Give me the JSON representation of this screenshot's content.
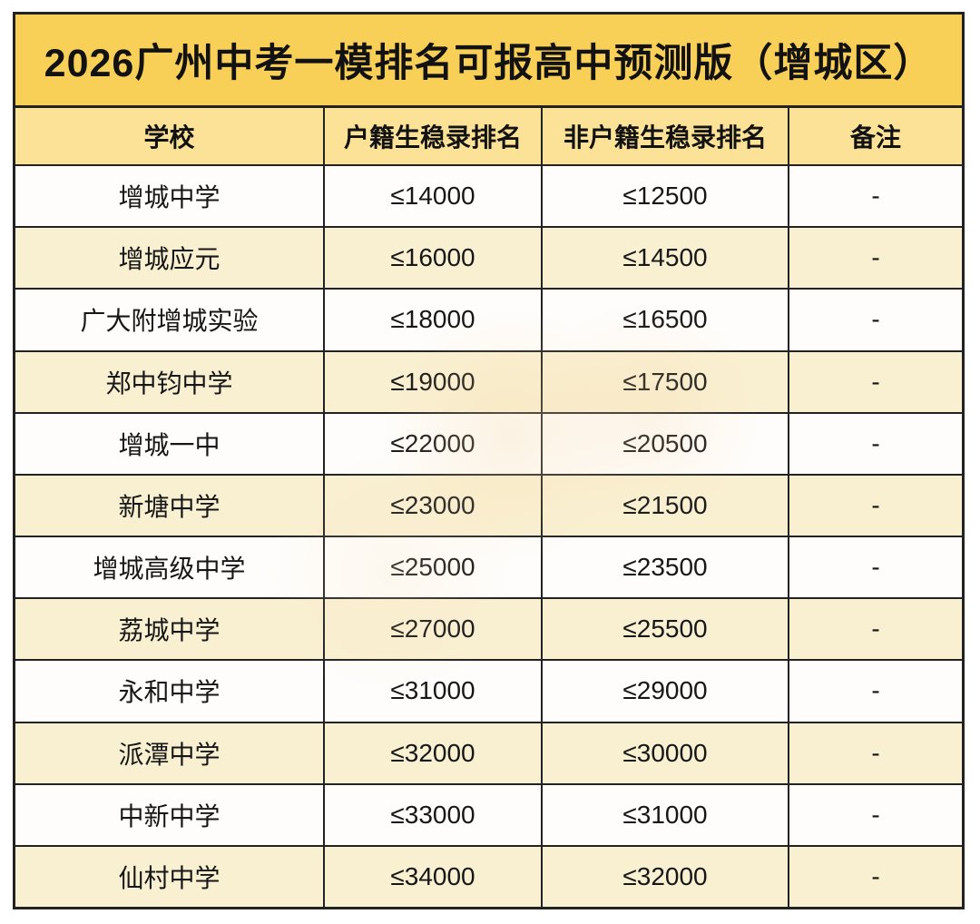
{
  "title": "2026广州中考一模排名可报高中预测版（增城区）",
  "columns": [
    "学校",
    "户籍生稳录排名",
    "非户籍生稳录排名",
    "备注"
  ],
  "rows": [
    {
      "school": "增城中学",
      "resident_rank": "≤14000",
      "non_resident_rank": "≤12500",
      "note": "-"
    },
    {
      "school": "增城应元",
      "resident_rank": "≤16000",
      "non_resident_rank": "≤14500",
      "note": "-"
    },
    {
      "school": "广大附增城实验",
      "resident_rank": "≤18000",
      "non_resident_rank": "≤16500",
      "note": "-"
    },
    {
      "school": "郑中钧中学",
      "resident_rank": "≤19000",
      "non_resident_rank": "≤17500",
      "note": "-"
    },
    {
      "school": "增城一中",
      "resident_rank": "≤22000",
      "non_resident_rank": "≤20500",
      "note": "-"
    },
    {
      "school": "新塘中学",
      "resident_rank": "≤23000",
      "non_resident_rank": "≤21500",
      "note": "-"
    },
    {
      "school": "增城高级中学",
      "resident_rank": "≤25000",
      "non_resident_rank": "≤23500",
      "note": "-"
    },
    {
      "school": "荔城中学",
      "resident_rank": "≤27000",
      "non_resident_rank": "≤25500",
      "note": "-"
    },
    {
      "school": "永和中学",
      "resident_rank": "≤31000",
      "non_resident_rank": "≤29000",
      "note": "-"
    },
    {
      "school": "派潭中学",
      "resident_rank": "≤32000",
      "non_resident_rank": "≤30000",
      "note": "-"
    },
    {
      "school": "中新中学",
      "resident_rank": "≤33000",
      "non_resident_rank": "≤31000",
      "note": "-"
    },
    {
      "school": "仙村中学",
      "resident_rank": "≤34000",
      "non_resident_rank": "≤32000",
      "note": "-"
    }
  ],
  "colors": {
    "title_bg": "#f9d057",
    "header_bg": "#fbe297",
    "row_white_bg": "#fefdfb",
    "row_cream_bg": "#f9f0d2",
    "border": "#222222",
    "text": "#121212"
  }
}
